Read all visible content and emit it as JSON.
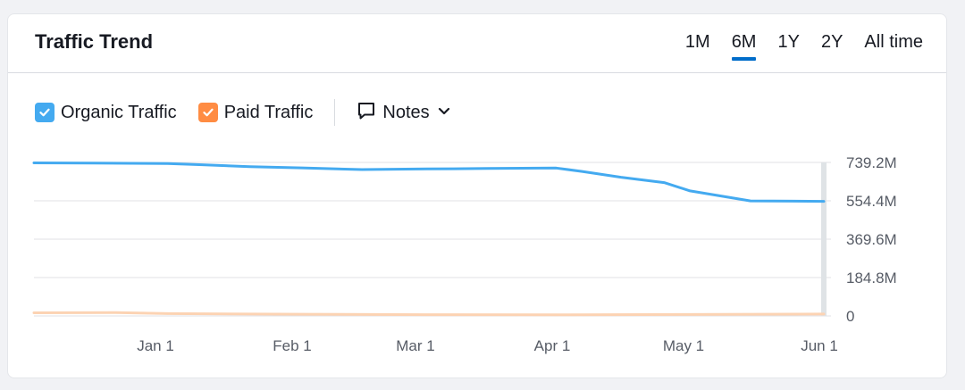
{
  "header": {
    "title": "Traffic Trend",
    "tabs": [
      {
        "label": "1M",
        "active": false
      },
      {
        "label": "6M",
        "active": true
      },
      {
        "label": "1Y",
        "active": false
      },
      {
        "label": "2Y",
        "active": false
      },
      {
        "label": "All time",
        "active": false
      }
    ]
  },
  "legend": {
    "organic_label": "Organic Traffic",
    "paid_label": "Paid Traffic",
    "notes_label": "Notes"
  },
  "colors": {
    "organic": "#44aaf0",
    "paid": "#ff8c43",
    "paid_line": "#fcd3b3",
    "accent": "#006dca",
    "grid": "#e0e2e6"
  },
  "icons": {
    "organic_check": "check-icon",
    "paid_check": "check-icon",
    "notes": "comment-icon",
    "notes_dropdown": "chevron-down-icon"
  },
  "chart_data": {
    "type": "line",
    "title": "",
    "xlabel": "",
    "ylabel": "",
    "ylim": [
      0,
      739.2
    ],
    "yunit": "M",
    "y_ticks": [
      "739.2M",
      "554.4M",
      "369.6M",
      "184.8M",
      "0"
    ],
    "x_ticks": [
      "Jan 1",
      "Feb 1",
      "Mar 1",
      "Apr 1",
      "May 1",
      "Jun 1"
    ],
    "grid": true,
    "series": [
      {
        "name": "Organic Traffic",
        "color": "#44aaf0",
        "points": [
          [
            "2023-12-01",
            737
          ],
          [
            "2023-12-15",
            736
          ],
          [
            "2024-01-01",
            734
          ],
          [
            "2024-01-09",
            728
          ],
          [
            "2024-01-20",
            719
          ],
          [
            "2024-02-01",
            713
          ],
          [
            "2024-02-15",
            705
          ],
          [
            "2024-03-01",
            708
          ],
          [
            "2024-03-15",
            710
          ],
          [
            "2024-03-31",
            712
          ],
          [
            "2024-04-06",
            696
          ],
          [
            "2024-04-15",
            668
          ],
          [
            "2024-04-25",
            642
          ],
          [
            "2024-05-01",
            602
          ],
          [
            "2024-05-15",
            554
          ],
          [
            "2024-06-01",
            552
          ]
        ]
      },
      {
        "name": "Paid Traffic",
        "color": "#fcd3b3",
        "points": [
          [
            "2023-12-01",
            15
          ],
          [
            "2023-12-20",
            16
          ],
          [
            "2024-01-01",
            11
          ],
          [
            "2024-02-01",
            8
          ],
          [
            "2024-03-01",
            6
          ],
          [
            "2024-04-01",
            5
          ],
          [
            "2024-05-01",
            7
          ],
          [
            "2024-06-01",
            9
          ]
        ]
      }
    ]
  }
}
